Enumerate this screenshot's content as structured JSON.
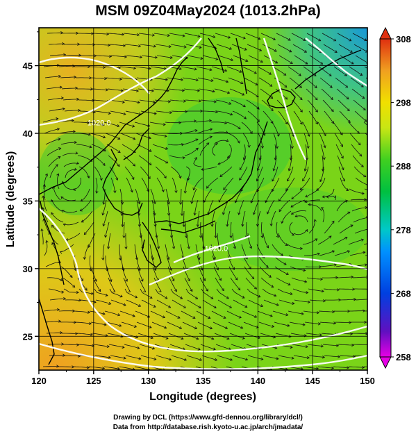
{
  "title": "MSM 09Z04May2024 (1013.2hPa)",
  "x_axis": {
    "label": "Longitude (degrees)",
    "ticks": [
      120,
      125,
      130,
      135,
      140,
      145,
      150
    ],
    "range": [
      120,
      150
    ]
  },
  "y_axis": {
    "label": "Latitude  (degrees)",
    "ticks": [
      25,
      30,
      35,
      40,
      45
    ],
    "range": [
      22.5,
      47.8
    ]
  },
  "colorbar": {
    "min": 258,
    "max": 308,
    "ticks": [
      308,
      298,
      288,
      278,
      268,
      258
    ],
    "colors": [
      "#e600e6",
      "#3010d0",
      "#0060ff",
      "#00c8c8",
      "#00c040",
      "#50d020",
      "#c8e614",
      "#f0e000",
      "#f0a020",
      "#e03010"
    ]
  },
  "contour_labels": [
    {
      "text": "1020.0",
      "lon": 136.2,
      "lat": 31.3
    },
    {
      "text": "1020.0",
      "lon": 125.5,
      "lat": 40.6
    }
  ],
  "footer": {
    "line1": "Drawing by DCL (https://www.gfd-dennou.org/library/dcl/)",
    "line2": "Data from http://database.rish.kyoto-u.ac.jp/arch/jmadata/"
  }
}
